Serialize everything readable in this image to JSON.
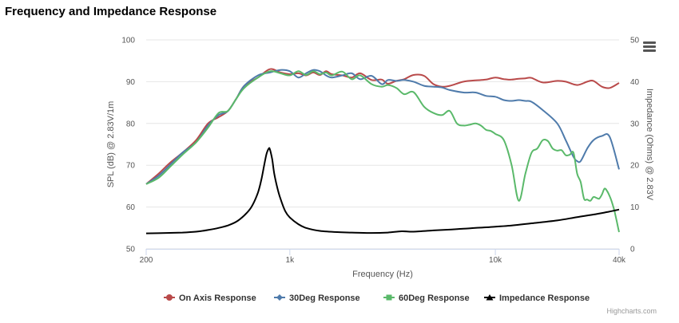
{
  "chart_data": {
    "type": "line",
    "title": "Frequency and Impedance Response",
    "xlabel": "Frequency (Hz)",
    "ylabel": "SPL (dB) @ 2.83V/1m",
    "y2label": "Impedance (Ohms) @ 2.83V",
    "xscale": "log",
    "xlim": [
      200,
      40000
    ],
    "ylim": [
      50,
      100
    ],
    "y2lim": [
      0,
      50
    ],
    "x_ticks": [
      {
        "value": 200,
        "label": "200"
      },
      {
        "value": 1000,
        "label": "1k"
      },
      {
        "value": 10000,
        "label": "10k"
      },
      {
        "value": 40000,
        "label": "40k"
      }
    ],
    "y_ticks": [
      50,
      60,
      70,
      80,
      90,
      100
    ],
    "y2_ticks": [
      0,
      10,
      20,
      30,
      40,
      50
    ],
    "grid": true,
    "legend_position": "bottom-center",
    "series": [
      {
        "name": "On Axis Response",
        "color": "#b94a4a",
        "axis": "left",
        "marker": "circle",
        "x": [
          200,
          230,
          260,
          300,
          350,
          400,
          450,
          500,
          550,
          600,
          700,
          800,
          900,
          1000,
          1100,
          1200,
          1300,
          1400,
          1500,
          1600,
          1800,
          2000,
          2200,
          2500,
          2800,
          3000,
          3300,
          3600,
          4000,
          4500,
          5000,
          5500,
          6000,
          7000,
          8000,
          9000,
          10000,
          11000,
          12000,
          13000,
          14000,
          15000,
          17000,
          20000,
          22000,
          25000,
          28000,
          30000,
          33000,
          36000,
          40000
        ],
        "y": [
          65.5,
          68,
          70.5,
          73,
          76,
          80,
          81.5,
          83,
          86,
          89,
          91,
          93,
          92.2,
          91.8,
          92,
          91.5,
          92.2,
          91.6,
          92.5,
          91.8,
          91.5,
          91,
          92,
          90.4,
          90.5,
          89.5,
          90.2,
          90.6,
          91.6,
          91.4,
          89.4,
          88.8,
          89,
          90,
          90.3,
          90.5,
          91,
          90.6,
          90.5,
          90.7,
          90.8,
          90.9,
          89.8,
          90.2,
          90,
          89.2,
          90,
          90.2,
          88.8,
          88.5,
          89.7
        ]
      },
      {
        "name": "30Deg Response",
        "color": "#4f7bab",
        "axis": "left",
        "marker": "diamond",
        "x": [
          200,
          230,
          260,
          300,
          350,
          400,
          450,
          500,
          550,
          600,
          700,
          800,
          900,
          1000,
          1100,
          1200,
          1300,
          1400,
          1500,
          1600,
          1800,
          2000,
          2200,
          2500,
          2800,
          3000,
          3300,
          3600,
          4000,
          4500,
          5000,
          5500,
          6000,
          7000,
          8000,
          9000,
          10000,
          11000,
          12000,
          13000,
          14000,
          15000,
          17000,
          20000,
          22000,
          24000,
          25000,
          26000,
          28000,
          30000,
          33000,
          36000,
          40000
        ],
        "y": [
          65.5,
          67.5,
          70,
          73,
          75.5,
          79.5,
          82,
          83,
          86,
          89,
          91.5,
          92.2,
          92.8,
          92.5,
          91,
          92,
          92.8,
          92.5,
          91.5,
          91,
          91.5,
          92,
          90.6,
          91.4,
          89.4,
          90.4,
          90.2,
          90.4,
          90,
          89,
          88.8,
          88.6,
          88,
          87.4,
          87.4,
          86.6,
          86.4,
          85.6,
          85.4,
          85.6,
          85.4,
          85.2,
          83.2,
          80,
          76,
          72,
          71,
          71,
          74,
          76,
          77,
          76.8,
          69
        ]
      },
      {
        "name": "60Deg Response",
        "color": "#5ab96a",
        "axis": "left",
        "marker": "square",
        "x": [
          200,
          230,
          260,
          300,
          350,
          400,
          450,
          500,
          550,
          600,
          700,
          800,
          900,
          1000,
          1100,
          1200,
          1300,
          1400,
          1500,
          1600,
          1800,
          2000,
          2200,
          2500,
          2800,
          3000,
          3300,
          3600,
          4000,
          4500,
          5000,
          5500,
          6000,
          6500,
          7000,
          7500,
          8000,
          8500,
          9000,
          9500,
          10000,
          11000,
          12000,
          13000,
          14000,
          15000,
          16000,
          17000,
          18000,
          19000,
          20000,
          21000,
          22000,
          23000,
          24000,
          25000,
          26000,
          27000,
          28000,
          29000,
          30000,
          31000,
          32000,
          33000,
          34000,
          35000,
          36000,
          37000,
          38000,
          39000,
          40000
        ],
        "y": [
          65.5,
          67,
          69.5,
          72.5,
          75.5,
          79,
          82.5,
          83,
          86,
          88.5,
          91,
          92.5,
          92,
          91.5,
          92.5,
          91.6,
          92.5,
          91.8,
          92.2,
          91.5,
          92.4,
          90.6,
          91.5,
          89.4,
          88.8,
          89.2,
          88.5,
          87,
          87.5,
          84,
          82.5,
          82,
          83,
          80,
          79.5,
          79.7,
          80,
          79.5,
          78.5,
          78.2,
          77.5,
          76,
          70,
          61.5,
          68,
          73,
          74,
          76,
          75.8,
          74,
          73.5,
          73.6,
          72.4,
          72.5,
          73,
          68,
          66,
          62,
          61.8,
          61.5,
          62.4,
          62.2,
          62,
          63,
          64.4,
          63.8,
          62.6,
          61,
          59,
          56.5,
          54
        ]
      },
      {
        "name": "Impedance Response",
        "color": "#000000",
        "axis": "right",
        "marker": "triangle",
        "x": [
          200,
          250,
          300,
          350,
          400,
          450,
          500,
          550,
          600,
          650,
          700,
          730,
          750,
          770,
          790,
          800,
          820,
          840,
          870,
          900,
          950,
          1000,
          1100,
          1200,
          1400,
          1700,
          2000,
          2500,
          3000,
          3500,
          4000,
          5000,
          6000,
          7000,
          8000,
          10000,
          12000,
          15000,
          20000,
          25000,
          30000,
          35000,
          40000
        ],
        "y": [
          3.7,
          3.8,
          3.9,
          4.1,
          4.5,
          5,
          5.6,
          6.5,
          8,
          10,
          13.5,
          17,
          20,
          22.7,
          24,
          23.8,
          21.5,
          18,
          14.5,
          12,
          9,
          7.5,
          5.9,
          5,
          4.3,
          4,
          3.9,
          3.8,
          3.9,
          4.2,
          4.1,
          4.4,
          4.6,
          4.8,
          5,
          5.3,
          5.6,
          6.1,
          6.8,
          7.6,
          8.2,
          8.8,
          9.4
        ]
      }
    ]
  }
}
